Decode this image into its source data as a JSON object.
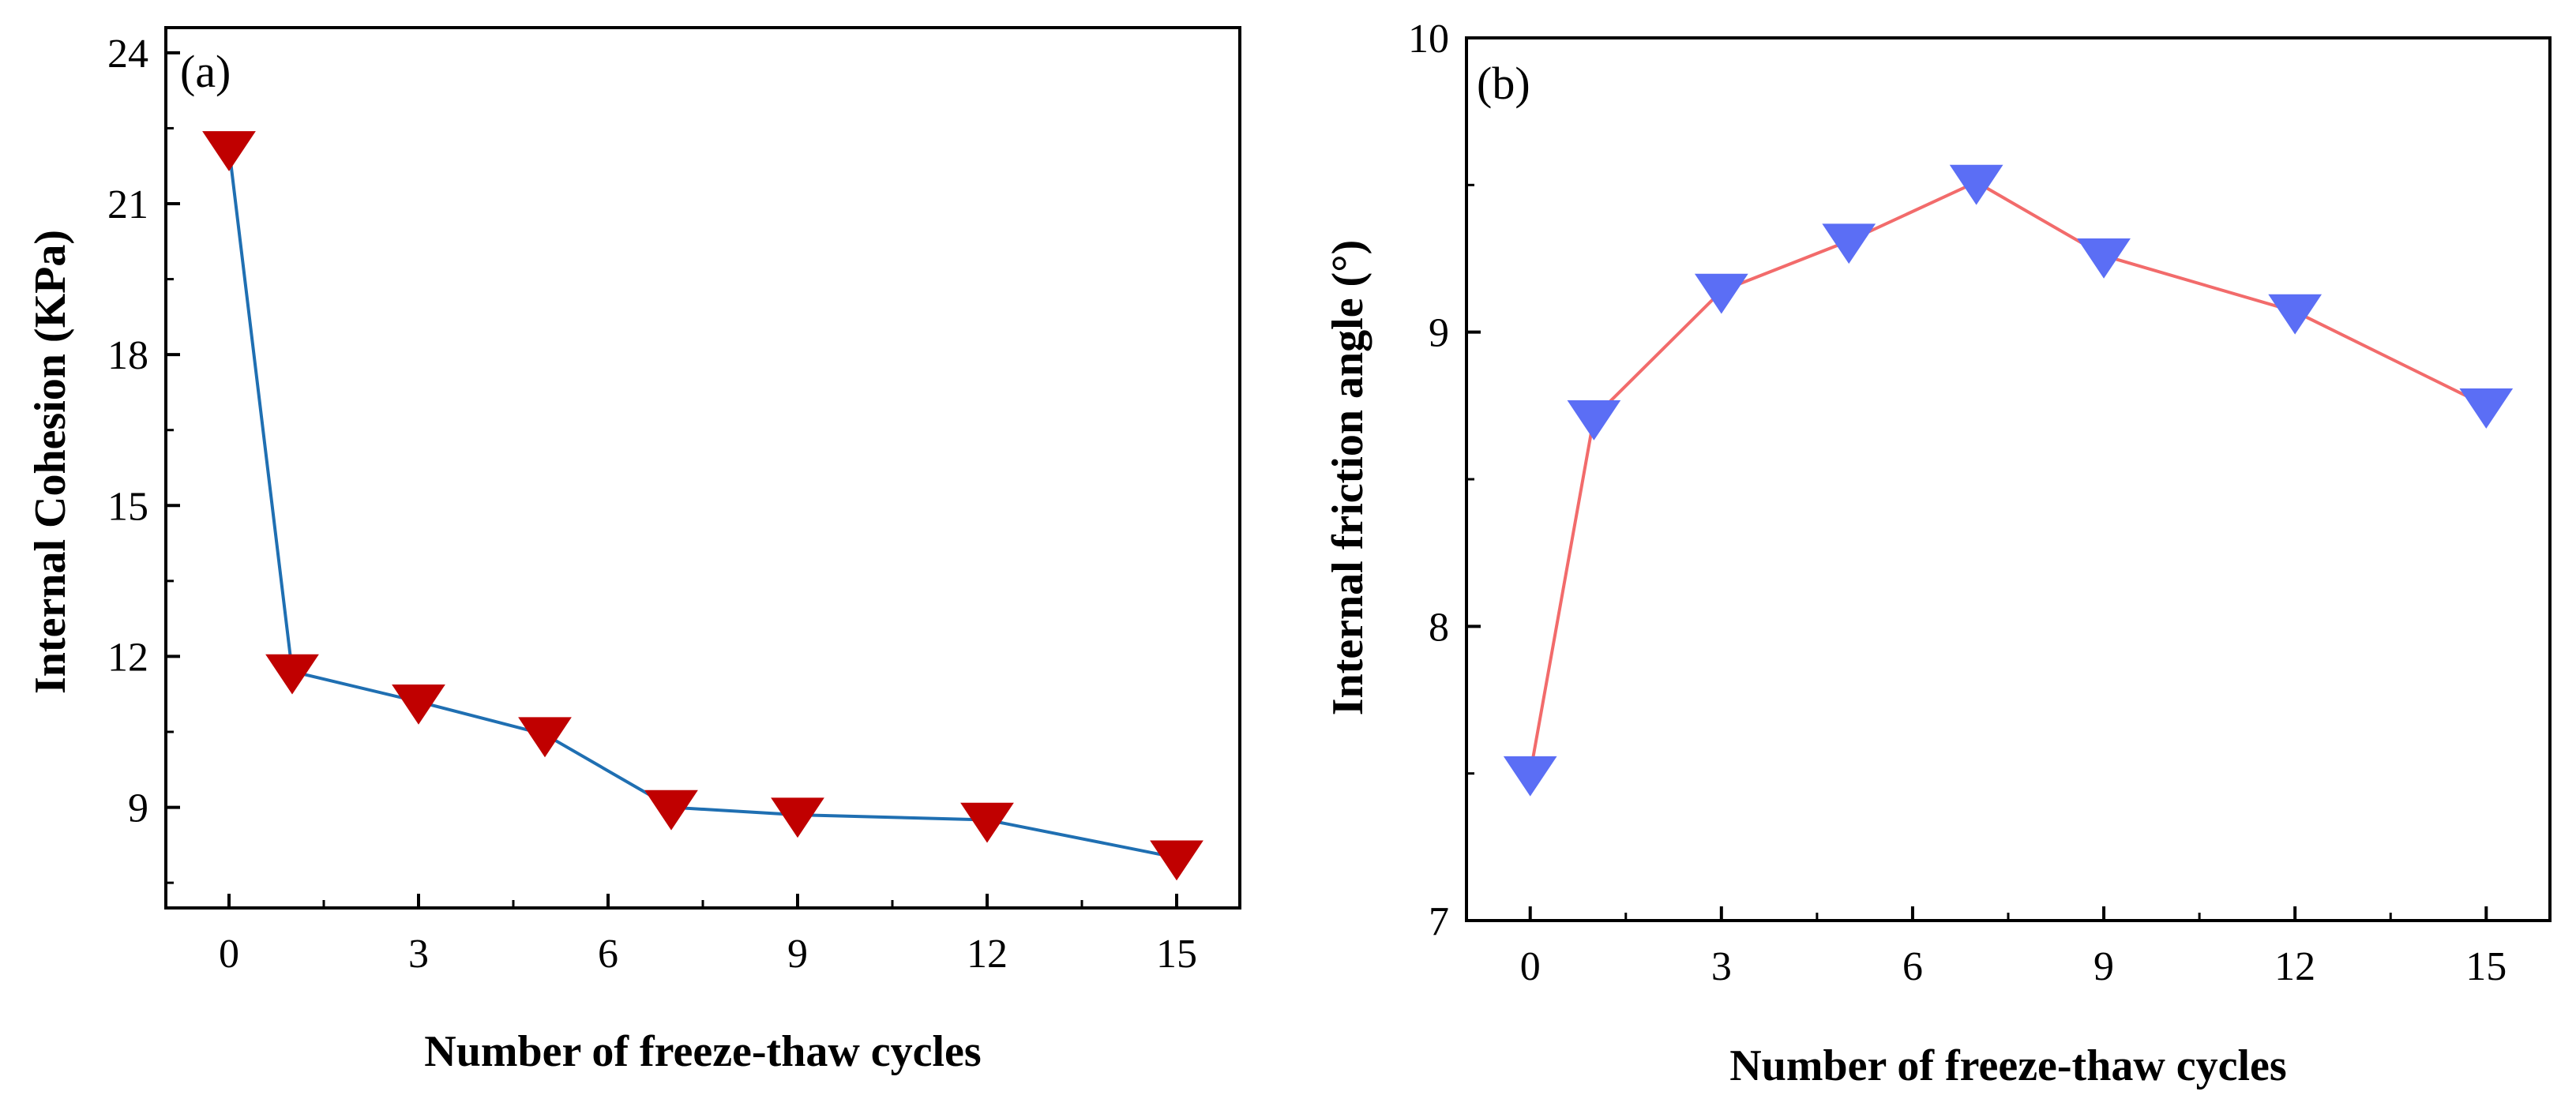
{
  "chart_data": [
    {
      "type": "line",
      "panel_label": "(a)",
      "title": "",
      "xlabel": "Number of freeze-thaw cycles",
      "ylabel": "Internal Cohesion (KPa)",
      "xlim": [
        -1,
        16
      ],
      "ylim": [
        7,
        24.5
      ],
      "xticks": [
        0,
        3,
        6,
        9,
        12,
        15
      ],
      "xtick_labels": [
        "0",
        "3",
        "6",
        "9",
        "12",
        "15"
      ],
      "yticks": [
        9,
        12,
        15,
        18,
        21,
        24
      ],
      "ytick_labels": [
        "9",
        "12",
        "15",
        "18",
        "21",
        "24"
      ],
      "grid": false,
      "series": [
        {
          "name": "Internal Cohesion",
          "marker": "triangle-down",
          "line_color": "#1f6fb2",
          "marker_color": "#c00000",
          "x": [
            0,
            1,
            3,
            5,
            7,
            9,
            12,
            15
          ],
          "y": [
            22.1,
            11.7,
            11.1,
            10.45,
            9.0,
            8.85,
            8.75,
            8.0
          ]
        }
      ]
    },
    {
      "type": "line",
      "panel_label": "(b)",
      "title": "",
      "xlabel": "Number of freeze-thaw cycles",
      "ylabel": "Internal friction angle (°)",
      "xlim": [
        -1,
        16
      ],
      "ylim": [
        7,
        10
      ],
      "xticks": [
        0,
        3,
        6,
        9,
        12,
        15
      ],
      "xtick_labels": [
        "0",
        "3",
        "6",
        "9",
        "12",
        "15"
      ],
      "yticks": [
        7,
        8,
        9,
        10
      ],
      "ytick_labels": [
        "7",
        "8",
        "9",
        "10"
      ],
      "grid": false,
      "series": [
        {
          "name": "Internal friction angle",
          "marker": "triangle-down",
          "line_color": "#f26b6b",
          "marker_color": "#5b6ef5",
          "x": [
            0,
            1,
            3,
            5,
            7,
            9,
            12,
            15
          ],
          "y": [
            7.5,
            8.71,
            9.14,
            9.31,
            9.51,
            9.26,
            9.07,
            8.75
          ]
        }
      ]
    }
  ]
}
